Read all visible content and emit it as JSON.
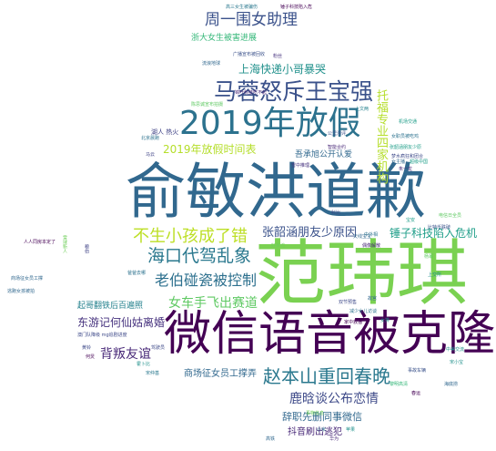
{
  "words": [
    {
      "text": "范玮琪",
      "weight": 100,
      "color": "#7ad151"
    },
    {
      "text": "俞敏洪道歉",
      "weight": 96,
      "color": "#31688e"
    },
    {
      "text": "微信语音被克隆",
      "weight": 82,
      "color": "#440154"
    },
    {
      "text": "2019年放假",
      "weight": 72,
      "color": "#2c728e"
    },
    {
      "text": "马蓉怒斥王宝强",
      "weight": 56,
      "color": "#3b528b"
    },
    {
      "text": "赵本山重回春晚",
      "weight": 52,
      "color": "#2a788e"
    },
    {
      "text": "海口代驾乱象",
      "weight": 48,
      "color": "#2a788e"
    },
    {
      "text": "不生小孩成了错",
      "weight": 46,
      "color": "#bddf26"
    },
    {
      "text": "周一围女助理",
      "weight": 42,
      "color": "#3b528b"
    },
    {
      "text": "老伯碰瓷被控制",
      "weight": 40,
      "color": "#2d708e"
    },
    {
      "text": "女车手飞出赛道",
      "weight": 38,
      "color": "#5ec962"
    },
    {
      "text": "鹿晗谈公布恋情",
      "weight": 38,
      "color": "#3e4a89"
    },
    {
      "text": "张韶涵朋友少原因",
      "weight": 36,
      "color": "#3b528b"
    },
    {
      "text": "锤子科技陷入危机",
      "weight": 36,
      "color": "#1f9e89"
    },
    {
      "text": "背叛友谊",
      "weight": 36,
      "color": "#482878"
    },
    {
      "text": "2019年放假时间表",
      "weight": 34,
      "color": "#b5de2b"
    },
    {
      "text": "上海快递小哥暴哭",
      "weight": 32,
      "color": "#21918c"
    },
    {
      "text": "东游记何仙姑离婚",
      "weight": 32,
      "color": "#46327e"
    },
    {
      "text": "辞职先删同事微信",
      "weight": 30,
      "color": "#31688e"
    },
    {
      "text": "抖音刷出逃犯",
      "weight": 30,
      "color": "#482878"
    },
    {
      "text": "托福专业四家机构",
      "weight": 30,
      "color": "#b5de2b"
    },
    {
      "text": "商场征女员工撑弄",
      "weight": 28,
      "color": "#31688e"
    },
    {
      "text": "浙大女生被害进展",
      "weight": 28,
      "color": "#35b779"
    },
    {
      "text": "吾承旭公开认爱",
      "weight": 28,
      "color": "#31688e"
    },
    {
      "text": "起哥翻铁后百遍照",
      "weight": 26,
      "color": "#26828e"
    },
    {
      "text": "湖人 热火",
      "weight": 22,
      "color": "#414487"
    },
    {
      "text": "陈思诚宣布拍摄",
      "weight": 20,
      "color": "#5ec962"
    },
    {
      "text": "高三女生被骗伤",
      "weight": 18,
      "color": "#2a788e"
    },
    {
      "text": "锤子科技陷入危",
      "weight": 18,
      "color": "#440154"
    },
    {
      "text": "广播宣布被回收",
      "weight": 18,
      "color": "#3b528b"
    },
    {
      "text": "锦叶科技吃不起",
      "weight": 18,
      "color": "#482878"
    },
    {
      "text": "女职员被吃鸡",
      "weight": 18,
      "color": "#2c728e"
    },
    {
      "text": "张韶涵朋友少原",
      "weight": 18,
      "color": "#1f9e89"
    },
    {
      "text": "比特币跌破",
      "weight": 18,
      "color": "#3b528b"
    },
    {
      "text": "梦水疯狂和团合",
      "weight": 18,
      "color": "#3e4a89"
    },
    {
      "text": "人人同房本定了",
      "weight": 18,
      "color": "#440154"
    },
    {
      "text": "商场征女员工撑",
      "weight": 18,
      "color": "#31688e"
    },
    {
      "text": "逃跑女孩被拍",
      "weight": 18,
      "color": "#31688e"
    },
    {
      "text": "雪球新人",
      "weight": 16,
      "color": "#6ece58"
    },
    {
      "text": "粮伯",
      "weight": 16,
      "color": "#414487"
    },
    {
      "text": "电信日全员",
      "weight": 16,
      "color": "#5ec962"
    },
    {
      "text": "机场交通",
      "weight": 16,
      "color": "#1f9e89"
    },
    {
      "text": "上文两",
      "weight": 16,
      "color": "#26828e"
    },
    {
      "text": "北京晨跑",
      "weight": 16,
      "color": "#2c728e"
    },
    {
      "text": "公里测评",
      "weight": 16,
      "color": "#3b528b"
    },
    {
      "text": "雪中推理",
      "weight": 16,
      "color": "#46327e"
    },
    {
      "text": "减少女儿访谈",
      "weight": 16,
      "color": "#2c728e"
    },
    {
      "text": "天线宝宝",
      "weight": 16,
      "color": "#31688e"
    },
    {
      "text": "偶像解散",
      "weight": 16,
      "color": "#482878"
    },
    {
      "text": "超级中国",
      "weight": 16,
      "color": "#1f9e89"
    },
    {
      "text": "海底捞",
      "weight": 16,
      "color": "#31688e"
    },
    {
      "text": "澳门队降级 mg追剧进度",
      "weight": 18,
      "color": "#3e4a89"
    },
    {
      "text": "黄铃",
      "weight": 16,
      "color": "#3e4a89"
    },
    {
      "text": "霍卜比",
      "weight": 16,
      "color": "#21918c"
    },
    {
      "text": "宋仲基",
      "weight": 16,
      "color": "#2a788e"
    },
    {
      "text": "黎明高清",
      "weight": 16,
      "color": "#35b779"
    },
    {
      "text": "事故车辆",
      "weight": 16,
      "color": "#3b528b"
    },
    {
      "text": "家中救猫",
      "weight": 16,
      "color": "#440154"
    },
    {
      "text": "事物信息",
      "weight": 16,
      "color": "#6ece58"
    },
    {
      "text": "中美交流",
      "weight": 16,
      "color": "#21918c"
    },
    {
      "text": "双节预售",
      "weight": 16,
      "color": "#3e4a89"
    },
    {
      "text": "中外相",
      "weight": 16,
      "color": "#2c728e"
    },
    {
      "text": "智能合约",
      "weight": 16,
      "color": "#482878"
    },
    {
      "text": "宋小宝",
      "weight": 16,
      "color": "#21918c"
    },
    {
      "text": "驾驶员",
      "weight": 16,
      "color": "#3e4a89"
    },
    {
      "text": "女主播",
      "weight": 16,
      "color": "#31688e"
    },
    {
      "text": "朱一龙",
      "weight": 16,
      "color": "#482878"
    },
    {
      "text": "宝安",
      "weight": 16,
      "color": "#1f9e89"
    },
    {
      "text": "好莱坞",
      "weight": 16,
      "color": "#6ece58"
    },
    {
      "text": "流浪地球",
      "weight": 16,
      "color": "#31688e"
    },
    {
      "text": "粉丝",
      "weight": 16,
      "color": "#46327e"
    },
    {
      "text": "上交所",
      "weight": 16,
      "color": "#21918c"
    },
    {
      "text": "爸爸去哪",
      "weight": 16,
      "color": "#2c728e"
    },
    {
      "text": "何炅",
      "weight": 16,
      "color": "#440154"
    },
    {
      "text": "杨幂",
      "weight": 16,
      "color": "#5ec962"
    },
    {
      "text": "女排",
      "weight": 16,
      "color": "#21918c"
    },
    {
      "text": "故宫",
      "weight": 16,
      "color": "#31688e"
    },
    {
      "text": "马云",
      "weight": 16,
      "color": "#414487"
    },
    {
      "text": "科比",
      "weight": 16,
      "color": "#3e4a89"
    },
    {
      "text": "小米",
      "weight": 16,
      "color": "#2c728e"
    },
    {
      "text": "华为",
      "weight": 16,
      "color": "#482878"
    },
    {
      "text": "苹果",
      "weight": 16,
      "color": "#21918c"
    },
    {
      "text": "高铁",
      "weight": 16,
      "color": "#31688e"
    },
    {
      "text": "春运",
      "weight": 16,
      "color": "#440154"
    }
  ]
}
